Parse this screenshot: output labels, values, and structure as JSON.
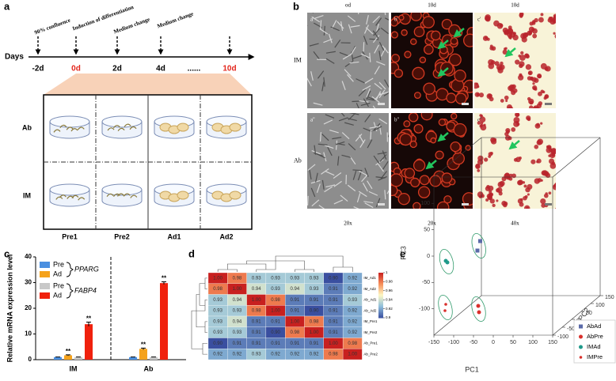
{
  "figure": {
    "a": {
      "label": "a",
      "days_label": "Days",
      "days": [
        "-2d",
        "0d",
        "2d",
        "4d",
        "......",
        "10d"
      ],
      "events": [
        "90% confluence",
        "Induction of differentiation",
        "Medium change",
        "Medium change"
      ],
      "rows": [
        "Ab",
        "IM"
      ],
      "columns": [
        "Pre1",
        "Pre2",
        "Ad1",
        "Ad2"
      ]
    },
    "b": {
      "label": "b",
      "columns": [
        "od",
        "10d",
        "10d"
      ],
      "rows": [
        "IM",
        "Ab"
      ],
      "panels": [
        [
          "a'",
          "b'",
          "c'"
        ],
        [
          "a''",
          "b''",
          "c''"
        ]
      ],
      "magnifications": [
        "20x",
        "20x",
        "40x"
      ]
    }
  },
  "chart_data": [
    {
      "type": "bar",
      "panel_label": "c",
      "y_label": "Relative mRNA expression level",
      "categories": [
        "IM",
        "Ab"
      ],
      "legend_groups": [
        "PPARG",
        "FABP4"
      ],
      "series": [
        {
          "name": "Pre",
          "color": "#4a8fe0",
          "values": [
            1,
            1
          ],
          "errors": [
            0.05,
            0.05
          ]
        },
        {
          "name": "Ad",
          "color": "#f5a21b",
          "values": [
            1.7,
            4.2
          ],
          "errors": [
            0.2,
            0.3
          ],
          "significance": [
            "**",
            "**"
          ]
        },
        {
          "name": "Pre",
          "color": "#c8c8c8",
          "values": [
            1,
            1
          ],
          "errors": [
            0.05,
            0.05
          ]
        },
        {
          "name": "Ad",
          "color": "#f0210d",
          "values": [
            13.8,
            29.8
          ],
          "errors": [
            0.8,
            0.5
          ],
          "significance": [
            "**",
            "**"
          ]
        }
      ],
      "ylim": [
        0,
        40
      ],
      "yticks": [
        0,
        10,
        20,
        30,
        40
      ]
    },
    {
      "type": "heatmap",
      "panel_label": "d",
      "labels": [
        "IM_Ad1",
        "IM_Ad2",
        "Ab_Ad1",
        "Ab_Ad2",
        "IM_Pre1",
        "IM_Pre2",
        "Ab_Pre1",
        "Ab_Pre2"
      ],
      "values": [
        [
          1.0,
          0.98,
          0.93,
          0.93,
          0.93,
          0.93,
          0.9,
          0.92
        ],
        [
          0.98,
          1.0,
          0.94,
          0.93,
          0.94,
          0.93,
          0.91,
          0.92
        ],
        [
          0.93,
          0.94,
          1.0,
          0.98,
          0.91,
          0.91,
          0.91,
          0.93
        ],
        [
          0.93,
          0.93,
          0.98,
          1.0,
          0.91,
          0.9,
          0.91,
          0.92
        ],
        [
          0.93,
          0.94,
          0.91,
          0.91,
          1.0,
          0.98,
          0.91,
          0.92
        ],
        [
          0.93,
          0.93,
          0.91,
          0.9,
          0.98,
          1.0,
          0.91,
          0.92
        ],
        [
          0.9,
          0.91,
          0.91,
          0.91,
          0.91,
          0.91,
          1.0,
          0.98
        ],
        [
          0.92,
          0.92,
          0.93,
          0.92,
          0.92,
          0.92,
          0.98,
          1.0
        ]
      ],
      "value_labels": [
        [
          "1.00",
          "0.98",
          "0.93",
          "0.93",
          "0.93",
          "0.93",
          "0.90",
          "0.92"
        ],
        [
          "0.98",
          "1.00",
          "0.94",
          "0.93",
          "0.94",
          "0.93",
          "0.91",
          "0.92"
        ],
        [
          "0.93",
          "0.94",
          "1.00",
          "0.98",
          "0.91",
          "0.91",
          "0.91",
          "0.93"
        ],
        [
          "0.93",
          "0.93",
          "0.98",
          "1.00",
          "0.91",
          "0.90",
          "0.91",
          "0.92"
        ],
        [
          "0.93",
          "0.94",
          "0.91",
          "0.91",
          "1.00",
          "0.98",
          "0.91",
          "0.92"
        ],
        [
          "0.93",
          "0.93",
          "0.91",
          "0.90",
          "0.98",
          "1.00",
          "0.91",
          "0.92"
        ],
        [
          "0.90",
          "0.91",
          "0.91",
          "0.91",
          "0.91",
          "0.91",
          "1.00",
          "0.98"
        ],
        [
          "0.92",
          "0.92",
          "0.93",
          "0.92",
          "0.92",
          "0.92",
          "0.98",
          "1.00"
        ]
      ],
      "clim": [
        0.9,
        1
      ],
      "cticks": [
        1,
        0.98,
        0.96,
        0.94,
        0.92,
        0.9
      ],
      "colormap": [
        "#3a4fa0",
        "#8fbfdc",
        "#fdf8c4",
        "#f7905a",
        "#c8201f"
      ]
    },
    {
      "type": "scatter3d",
      "panel_label": "e",
      "x_label": "PC1",
      "y_label": "PC2",
      "z_label": "PC3",
      "xlim": [
        -150,
        150
      ],
      "xticks": [
        -150,
        -100,
        -50,
        0,
        50,
        100,
        150
      ],
      "ylim": [
        -100,
        150
      ],
      "yticks": [
        -100,
        -50,
        0,
        50,
        100,
        150
      ],
      "zlim": [
        -150,
        150
      ],
      "zticks": [
        -100,
        -50,
        0,
        50,
        100
      ],
      "series": [
        {
          "name": "AbAd",
          "color": "#5a6aa8",
          "marker": "square",
          "x": [
            -93,
            -100
          ],
          "y": [
            25,
            25
          ],
          "z": [
            -9,
            -27
          ]
        },
        {
          "name": "AbPre",
          "color": "#d9302c",
          "marker": "circle",
          "x": [
            -74,
            -72
          ],
          "y": [
            -25,
            -25
          ],
          "z": [
            -117,
            -129
          ]
        },
        {
          "name": "IMAd",
          "color": "#1f9a8a",
          "marker": "circle",
          "x": [
            -144,
            -140
          ],
          "y": [
            -50,
            -50
          ],
          "z": [
            -24,
            -27
          ]
        },
        {
          "name": "IMPre",
          "color": "#d9302c",
          "marker": "small-circle",
          "x": [
            -132,
            -134
          ],
          "y": [
            -75,
            -75
          ],
          "z": [
            -99,
            -111
          ]
        }
      ]
    }
  ]
}
